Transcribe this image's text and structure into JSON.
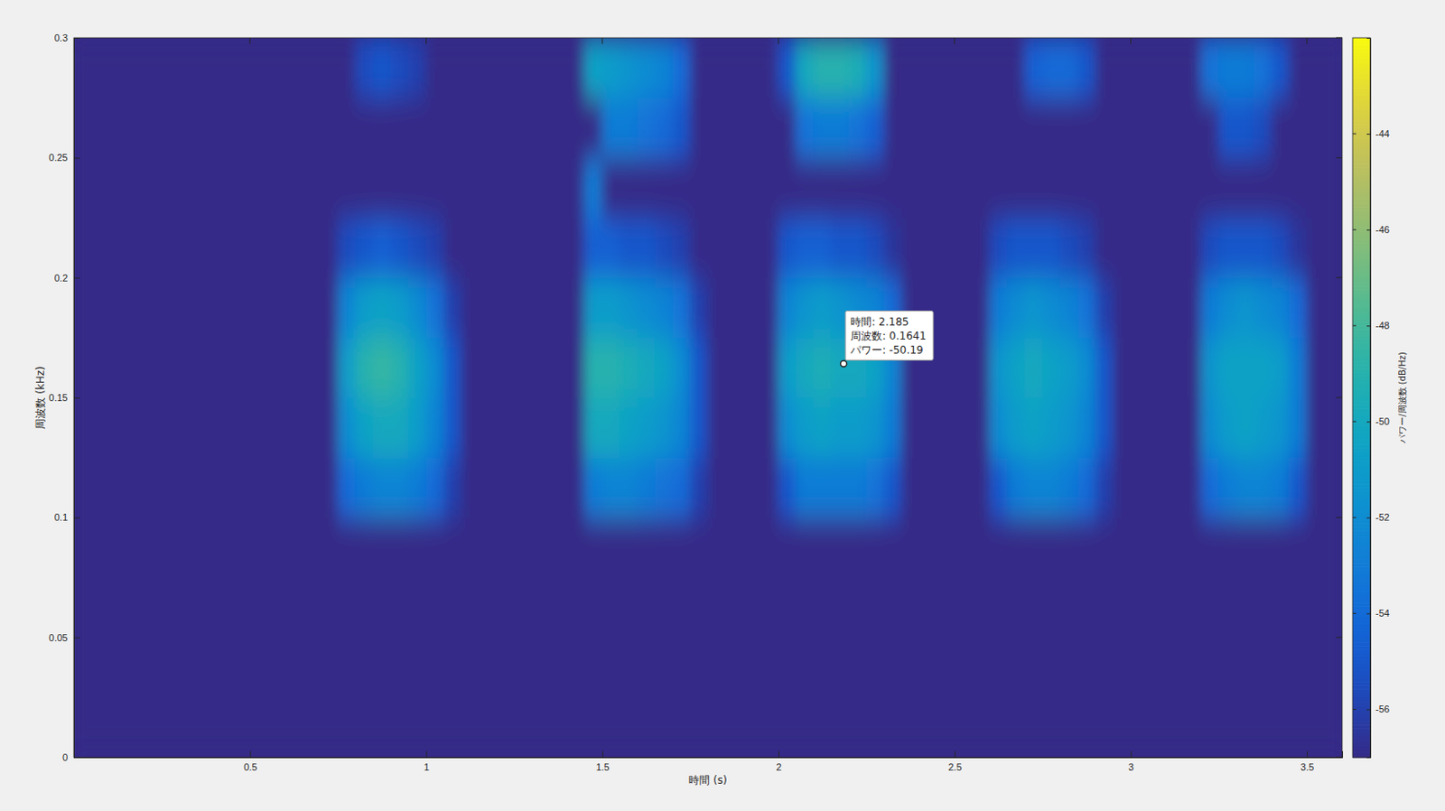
{
  "chart_data": {
    "type": "heatmap",
    "xlabel": "時間 (s)",
    "ylabel": "周波数 (kHz)",
    "xlim": [
      0,
      3.6
    ],
    "ylim": [
      0,
      0.3
    ],
    "xticks": [
      0.5,
      1,
      1.5,
      2,
      2.5,
      3,
      3.5
    ],
    "yticks": [
      0,
      0.05,
      0.1,
      0.15,
      0.2,
      0.25,
      0.3
    ],
    "grid": false,
    "x": [
      0.025,
      0.075,
      0.125,
      0.175,
      0.225,
      0.275,
      0.325,
      0.375,
      0.425,
      0.475,
      0.525,
      0.575,
      0.625,
      0.675,
      0.725,
      0.775,
      0.825,
      0.875,
      0.925,
      0.975,
      1.025,
      1.075,
      1.125,
      1.175,
      1.225,
      1.275,
      1.325,
      1.375,
      1.425,
      1.475,
      1.525,
      1.575,
      1.625,
      1.675,
      1.725,
      1.775,
      1.825,
      1.875,
      1.925,
      1.975,
      2.025,
      2.075,
      2.125,
      2.175,
      2.225,
      2.275,
      2.325,
      2.375,
      2.425,
      2.475,
      2.525,
      2.575,
      2.625,
      2.675,
      2.725,
      2.775,
      2.825,
      2.875,
      2.925,
      2.975,
      3.025,
      3.075,
      3.125,
      3.175,
      3.225,
      3.275,
      3.325,
      3.375,
      3.425,
      3.475,
      3.525,
      3.575
    ],
    "y": [
      0.0125,
      0.0375,
      0.0625,
      0.0875,
      0.1125,
      0.1375,
      0.1625,
      0.1875,
      0.2125,
      0.2375,
      0.2625,
      0.2875
    ],
    "z": [
      [
        -57,
        -57,
        -57,
        -57,
        -57,
        -57,
        -57,
        -57,
        -57,
        -57,
        -57,
        -57,
        -57,
        -57,
        -57,
        -57,
        -57,
        -57,
        -57,
        -57,
        -57,
        -57,
        -57,
        -57,
        -57,
        -57,
        -57,
        -57,
        -57,
        -57,
        -57,
        -57,
        -57,
        -57,
        -57,
        -57,
        -57,
        -57,
        -57,
        -57,
        -57,
        -57,
        -57,
        -57,
        -57,
        -57,
        -57,
        -57,
        -57,
        -57,
        -57,
        -57,
        -57,
        -57,
        -57,
        -57,
        -57,
        -57,
        -57,
        -57,
        -57,
        -57,
        -57,
        -57,
        -57,
        -57,
        -57,
        -57,
        -57,
        -57,
        -57,
        -57
      ],
      [
        -57,
        -57,
        -57,
        -57,
        -57,
        -57,
        -57,
        -57,
        -57,
        -57,
        -57,
        -57,
        -57,
        -57,
        -57,
        -57,
        -57,
        -57,
        -57,
        -57,
        -57,
        -57,
        -57,
        -57,
        -57,
        -57,
        -57,
        -57,
        -57,
        -57,
        -57,
        -57,
        -57,
        -57,
        -57,
        -57,
        -57,
        -57,
        -57,
        -57,
        -57,
        -57,
        -57,
        -57,
        -57,
        -57,
        -57,
        -57,
        -57,
        -57,
        -57,
        -57,
        -57,
        -57,
        -57,
        -57,
        -57,
        -57,
        -57,
        -57,
        -57,
        -57,
        -57,
        -57,
        -57,
        -57,
        -57,
        -57,
        -57,
        -57,
        -57,
        -57
      ],
      [
        -57,
        -57,
        -57,
        -57,
        -57,
        -57,
        -57,
        -57,
        -57,
        -57,
        -57,
        -57,
        -57,
        -57,
        -57,
        -57,
        -57,
        -57,
        -57,
        -57,
        -57,
        -57,
        -57,
        -57,
        -57,
        -57,
        -57,
        -57,
        -57,
        -57,
        -57,
        -57,
        -57,
        -57,
        -57,
        -57,
        -57,
        -57,
        -57,
        -57,
        -57,
        -57,
        -57,
        -57,
        -57,
        -57,
        -57,
        -57,
        -57,
        -57,
        -57,
        -57,
        -57,
        -57,
        -57,
        -57,
        -57,
        -57,
        -57,
        -57,
        -57,
        -57,
        -57,
        -57,
        -57,
        -57,
        -57,
        -57,
        -57,
        -57,
        -57,
        -57
      ],
      [
        -57,
        -57,
        -57,
        -57,
        -57,
        -57,
        -57,
        -57,
        -57,
        -57,
        -57,
        -57,
        -57,
        -57,
        -57,
        -57,
        -57,
        -57,
        -57,
        -57,
        -57,
        -57,
        -57,
        -57,
        -57,
        -57,
        -57,
        -57,
        -57,
        -57,
        -57,
        -57,
        -57,
        -57,
        -57,
        -57,
        -57,
        -57,
        -57,
        -57,
        -57,
        -57,
        -57,
        -57,
        -57,
        -57,
        -57,
        -57,
        -57,
        -57,
        -57,
        -57,
        -57,
        -57,
        -57,
        -57,
        -57,
        -57,
        -57,
        -57,
        -57,
        -57,
        -57,
        -57,
        -57,
        -57,
        -57,
        -57,
        -57,
        -57,
        -57,
        -57
      ],
      [
        -57,
        -57,
        -57,
        -57,
        -57,
        -57,
        -57,
        -57,
        -57,
        -57,
        -57,
        -57,
        -57,
        -57,
        -57,
        -54,
        -53,
        -52.5,
        -52.5,
        -53,
        -54,
        -56,
        -57,
        -57,
        -57,
        -57,
        -57,
        -57,
        -57,
        -53,
        -52.5,
        -52.5,
        -53,
        -53.5,
        -54,
        -56,
        -57,
        -57,
        -57,
        -57,
        -55,
        -53,
        -53,
        -53,
        -53,
        -53.5,
        -55,
        -57,
        -57,
        -57,
        -57,
        -57,
        -55,
        -53,
        -52.5,
        -52.5,
        -53,
        -54,
        -56,
        -57,
        -57,
        -57,
        -57,
        -57,
        -54,
        -53,
        -52.5,
        -52.5,
        -53,
        -55,
        -57,
        -57
      ],
      [
        -57,
        -57,
        -57,
        -57,
        -57,
        -57,
        -57,
        -57,
        -57,
        -57,
        -57,
        -57,
        -57,
        -57,
        -57,
        -52,
        -50.5,
        -50,
        -50,
        -51,
        -52.5,
        -55,
        -57,
        -57,
        -57,
        -57,
        -57,
        -57,
        -57,
        -50,
        -50,
        -50.5,
        -51,
        -51.5,
        -52.5,
        -55,
        -57,
        -57,
        -57,
        -57,
        -52,
        -51,
        -50.5,
        -51,
        -51,
        -51.5,
        -53,
        -57,
        -57,
        -57,
        -57,
        -57,
        -52,
        -51,
        -50.5,
        -51,
        -51.5,
        -52.5,
        -55,
        -57,
        -57,
        -57,
        -57,
        -57,
        -52,
        -51,
        -50.5,
        -51,
        -51.5,
        -53,
        -57,
        -57
      ],
      [
        -57,
        -57,
        -57,
        -57,
        -57,
        -57,
        -57,
        -57,
        -57,
        -57,
        -57,
        -57,
        -57,
        -57,
        -57,
        -51,
        -49,
        -48.5,
        -49,
        -50.5,
        -52,
        -55,
        -57,
        -57,
        -57,
        -57,
        -57,
        -57,
        -57,
        -49,
        -49,
        -49.5,
        -50,
        -50.5,
        -52,
        -55,
        -57,
        -57,
        -57,
        -57,
        -51,
        -50,
        -49.5,
        -50,
        -50,
        -50.5,
        -52.5,
        -57,
        -57,
        -57,
        -57,
        -57,
        -51.5,
        -50.5,
        -50,
        -50.5,
        -51,
        -52,
        -55,
        -57,
        -57,
        -57,
        -57,
        -57,
        -51.5,
        -50.5,
        -50.5,
        -50.5,
        -51,
        -53,
        -57,
        -57
      ],
      [
        -57,
        -57,
        -57,
        -57,
        -57,
        -57,
        -57,
        -57,
        -57,
        -57,
        -57,
        -57,
        -57,
        -57,
        -57,
        -52.5,
        -51,
        -50.5,
        -51,
        -52,
        -53.5,
        -56,
        -57,
        -57,
        -57,
        -57,
        -57,
        -57,
        -57,
        -51,
        -51,
        -51.5,
        -52,
        -52.5,
        -53.5,
        -56,
        -57,
        -57,
        -57,
        -57,
        -52.5,
        -51.5,
        -51,
        -51.5,
        -52,
        -52.5,
        -54,
        -57,
        -57,
        -57,
        -57,
        -57,
        -53,
        -52,
        -51.5,
        -52,
        -52.5,
        -53.5,
        -56,
        -57,
        -57,
        -57,
        -57,
        -57,
        -53,
        -52,
        -51.5,
        -52,
        -52.5,
        -54,
        -57,
        -57
      ],
      [
        -57,
        -57,
        -57,
        -57,
        -57,
        -57,
        -57,
        -57,
        -57,
        -57,
        -57,
        -57,
        -57,
        -57,
        -57,
        -55.5,
        -55,
        -54.5,
        -55,
        -55.5,
        -56,
        -57,
        -57,
        -57,
        -57,
        -57,
        -57,
        -57,
        -57,
        -54.5,
        -54.5,
        -55,
        -55,
        -55.5,
        -56,
        -57,
        -57,
        -57,
        -57,
        -57,
        -55,
        -54.5,
        -54.5,
        -55,
        -55,
        -55.5,
        -56.5,
        -57,
        -57,
        -57,
        -57,
        -57,
        -55.5,
        -55,
        -55,
        -55,
        -55.5,
        -56,
        -57,
        -57,
        -57,
        -57,
        -57,
        -57,
        -55.5,
        -55,
        -55,
        -55,
        -55.5,
        -56.5,
        -57,
        -57
      ],
      [
        -57,
        -57,
        -57,
        -57,
        -57,
        -57,
        -57,
        -57,
        -57,
        -57,
        -57,
        -57,
        -57,
        -57,
        -57,
        -57,
        -57,
        -57,
        -57,
        -57,
        -57,
        -57,
        -57,
        -57,
        -57,
        -57,
        -57,
        -57,
        -57,
        -53,
        -57,
        -57,
        -57,
        -57,
        -57,
        -57,
        -57,
        -57,
        -57,
        -57,
        -57,
        -57,
        -57,
        -57,
        -57,
        -57,
        -57,
        -57,
        -57,
        -57,
        -57,
        -57,
        -57,
        -57,
        -57,
        -57,
        -57,
        -57,
        -57,
        -57,
        -57,
        -57,
        -57,
        -57,
        -57,
        -57,
        -57,
        -57,
        -57,
        -57,
        -57,
        -57
      ],
      [
        -57,
        -57,
        -57,
        -57,
        -57,
        -57,
        -57,
        -57,
        -57,
        -57,
        -57,
        -57,
        -57,
        -57,
        -57,
        -57,
        -57,
        -57,
        -57,
        -57,
        -57,
        -57,
        -57,
        -57,
        -57,
        -57,
        -57,
        -57,
        -57,
        -57,
        -53,
        -53,
        -53.5,
        -54,
        -55,
        -57,
        -57,
        -57,
        -57,
        -57,
        -57,
        -53.5,
        -53,
        -53,
        -53.5,
        -54.5,
        -57,
        -57,
        -57,
        -57,
        -57,
        -57,
        -57,
        -57,
        -57,
        -57,
        -57,
        -57,
        -57,
        -57,
        -57,
        -57,
        -57,
        -57,
        -57,
        -55,
        -55,
        -55.5,
        -57,
        -57,
        -57,
        -57
      ],
      [
        -57,
        -57,
        -57,
        -57,
        -57,
        -57,
        -57,
        -57,
        -57,
        -57,
        -57,
        -57,
        -57,
        -57,
        -57,
        -57,
        -55.5,
        -55,
        -55.5,
        -56,
        -57,
        -57,
        -57,
        -57,
        -57,
        -57,
        -57,
        -57,
        -57,
        -50.5,
        -51,
        -51.5,
        -52,
        -52.5,
        -54,
        -57,
        -57,
        -57,
        -57,
        -57,
        -55,
        -50,
        -49,
        -49,
        -49.5,
        -51.5,
        -57,
        -57,
        -57,
        -57,
        -57,
        -57,
        -57,
        -57,
        -54.5,
        -54,
        -54,
        -55,
        -57,
        -57,
        -57,
        -57,
        -57,
        -57,
        -53.5,
        -53,
        -53,
        -53.5,
        -55,
        -57,
        -57,
        -57
      ]
    ],
    "colorbar": {
      "lim": [
        -57,
        -42
      ],
      "ticks": [
        -56,
        -54,
        -52,
        -50,
        -48,
        -46,
        -44
      ],
      "label": "パワー/周波数 (dB/Hz)"
    },
    "annotation": {
      "x": 2.185,
      "y": 0.1641,
      "lines": [
        "時間: 2.185",
        "周波数: 0.1641",
        "パワー: -50.19"
      ]
    }
  }
}
